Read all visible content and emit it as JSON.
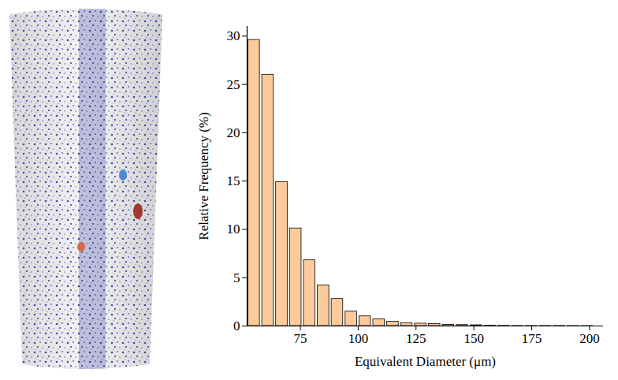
{
  "chart_data": {
    "type": "histogram",
    "x_label": "Equivalent Diameter (μm)",
    "y_label": "Relative Frequency (%)",
    "bins": [
      52,
      58,
      64,
      70,
      76,
      82,
      88,
      94,
      100,
      106,
      112,
      118,
      124,
      130,
      136,
      142,
      148,
      154,
      160,
      166,
      172,
      178,
      184,
      190,
      196,
      202
    ],
    "values": [
      29.6,
      26.0,
      14.9,
      10.1,
      6.8,
      4.2,
      2.8,
      1.5,
      1.0,
      0.7,
      0.45,
      0.3,
      0.25,
      0.2,
      0.12,
      0.1,
      0.08,
      0.03,
      0.02,
      0.01,
      0.01,
      0.01,
      0.01,
      0.005,
      0.005
    ],
    "color": "#fdca9c",
    "xlim": [
      52,
      206
    ],
    "xticks": [
      75,
      100,
      125,
      150,
      175,
      200
    ],
    "ylim": [
      0,
      31
    ],
    "yticks": [
      0,
      5,
      10,
      15,
      20,
      25,
      30
    ],
    "grid": false
  }
}
